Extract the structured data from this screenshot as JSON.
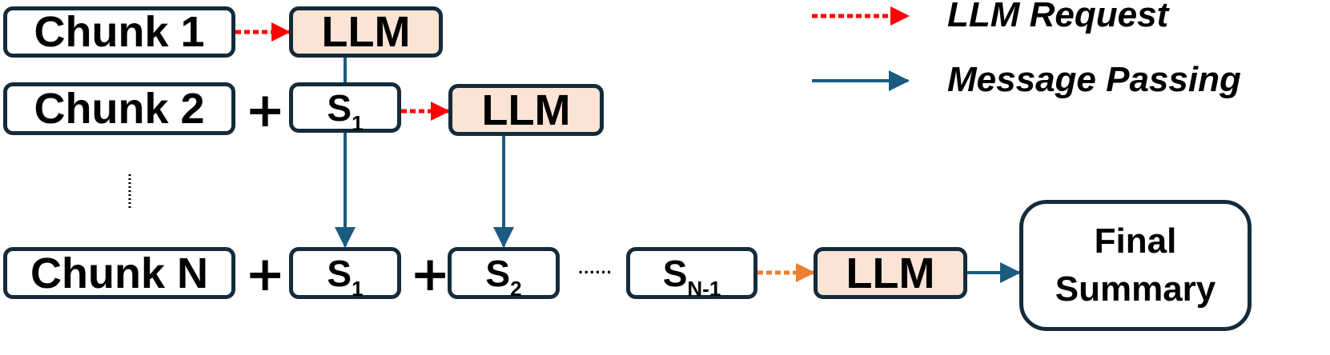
{
  "legend": {
    "llm_request": "LLM Request",
    "message_passing": "Message Passing"
  },
  "rows": {
    "row1": {
      "chunk": "Chunk 1",
      "llm": "LLM"
    },
    "row2": {
      "chunk": "Chunk 2",
      "plus": "+",
      "s1_base": "S",
      "s1_sub": "1",
      "llm": "LLM"
    },
    "rowN": {
      "chunk": "Chunk N",
      "plus1": "+",
      "s1_base": "S",
      "s1_sub": "1",
      "plus2": "+",
      "s2_base": "S",
      "s2_sub": "2",
      "ellipsis": "......",
      "sn1_base": "S",
      "sn1_sub": "N-1",
      "llm": "LLM"
    }
  },
  "final": {
    "line1": "Final",
    "line2": "Summary"
  },
  "colors": {
    "box_border": "#142b3a",
    "llm_fill": "#fbe3d6",
    "request_arrow": "#ff0000",
    "message_arrow": "#1a5b7f",
    "last_request_arrow": "#ed7d31"
  }
}
